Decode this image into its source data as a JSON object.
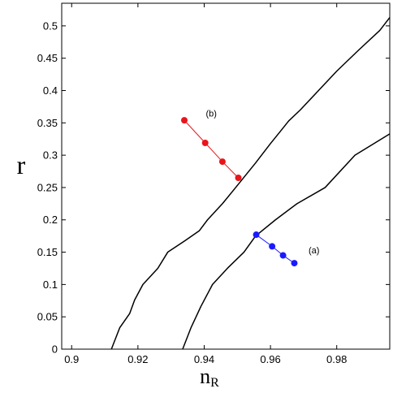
{
  "chart_data": {
    "type": "line",
    "xlabel": "n",
    "xlabel_subscript": "R",
    "ylabel": "r",
    "xlim": [
      0.897,
      0.996
    ],
    "ylim": [
      0,
      0.535
    ],
    "xticks": [
      0.9,
      0.92,
      0.94,
      0.96,
      0.98
    ],
    "xtick_labels": [
      "0.9",
      "0.92",
      "0.94",
      "0.96",
      "0.98"
    ],
    "yticks": [
      0,
      0.05,
      0.1,
      0.15,
      0.2,
      0.25,
      0.3,
      0.35,
      0.4,
      0.45,
      0.5
    ],
    "ytick_labels": [
      "0",
      "0.05",
      "0.1",
      "0.15",
      "0.2",
      "0.25",
      "0.3",
      "0.35",
      "0.4",
      "0.45",
      "0.5"
    ],
    "grid": false,
    "series": [
      {
        "color": "#000000",
        "markers": false,
        "x": [
          0.912,
          0.9145,
          0.9175,
          0.919,
          0.9215,
          0.926,
          0.929,
          0.934,
          0.9385,
          0.941,
          0.9455,
          0.9495,
          0.9555,
          0.96,
          0.963,
          0.9655,
          0.969,
          0.9745,
          0.98,
          0.9865,
          0.993,
          0.996
        ],
        "y": [
          0,
          0.033,
          0.055,
          0.076,
          0.1,
          0.125,
          0.15,
          0.167,
          0.183,
          0.2,
          0.225,
          0.25,
          0.288,
          0.318,
          0.337,
          0.353,
          0.37,
          0.4,
          0.43,
          0.462,
          0.493,
          0.513
        ]
      },
      {
        "color": "#000000",
        "markers": false,
        "x": [
          0.9335,
          0.936,
          0.939,
          0.9425,
          0.947,
          0.952,
          0.9555,
          0.9615,
          0.968,
          0.9765,
          0.9855,
          0.996
        ],
        "y": [
          0,
          0.033,
          0.066,
          0.1,
          0.125,
          0.15,
          0.175,
          0.2,
          0.225,
          0.25,
          0.3,
          0.333
        ]
      },
      {
        "color": "#e8151b",
        "markers": true,
        "x": [
          0.934,
          0.9403,
          0.9455,
          0.9503
        ],
        "y": [
          0.354,
          0.319,
          0.29,
          0.265
        ]
      },
      {
        "color": "#1a1aff",
        "markers": true,
        "x": [
          0.9557,
          0.9605,
          0.9638,
          0.9672
        ],
        "y": [
          0.177,
          0.159,
          0.145,
          0.133
        ]
      }
    ],
    "annotations": [
      {
        "text": "(b)",
        "x": 0.9405,
        "y": 0.36
      },
      {
        "text": "(a)",
        "x": 0.9715,
        "y": 0.148
      }
    ]
  }
}
